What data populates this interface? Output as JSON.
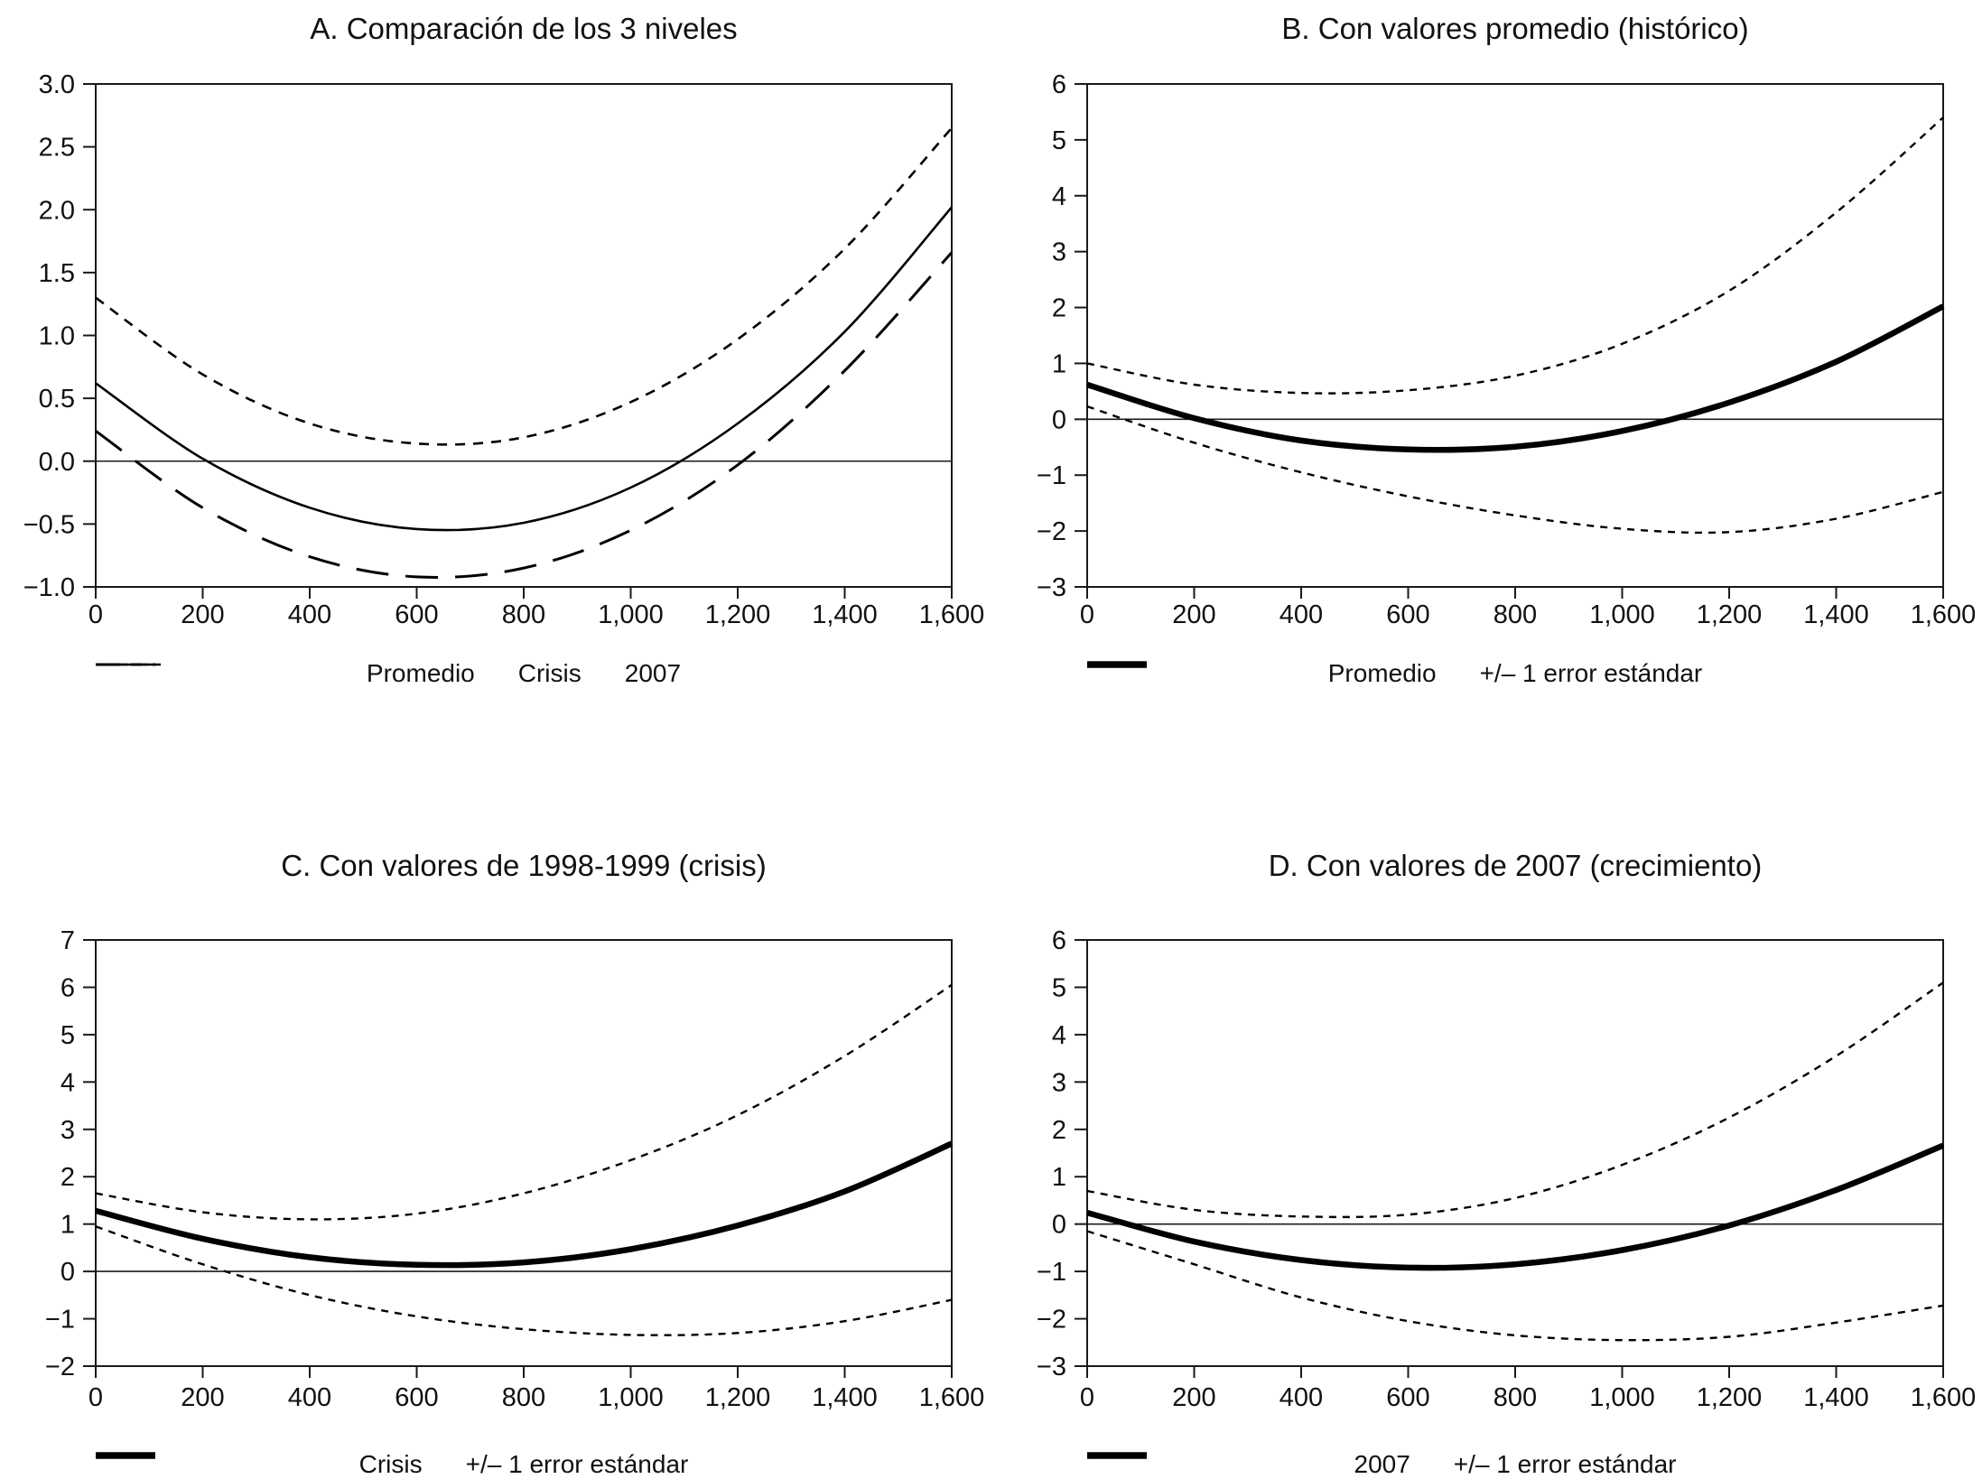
{
  "page": {
    "background": "#ffffff",
    "text_color": "#111111",
    "line_color": "#1a1a1a",
    "curve_color": "#000000"
  },
  "chart_data": [
    {
      "id": "A",
      "type": "line",
      "title": "A. Comparación de los 3 niveles",
      "xlim": [
        0,
        1600
      ],
      "ylim": [
        -1.0,
        3.0
      ],
      "x": [
        0,
        200,
        400,
        600,
        800,
        1000,
        1200,
        1400,
        1600
      ],
      "x_tick_labels": [
        "0",
        "200",
        "400",
        "600",
        "800",
        "1,000",
        "1,200",
        "1,400",
        "1,600"
      ],
      "y_ticks": [
        3.0,
        2.5,
        2.0,
        1.5,
        1.0,
        0.5,
        0.0,
        -0.5,
        -1.0
      ],
      "y_tick_labels": [
        "3.0",
        "2.5",
        "2.0",
        "1.5",
        "1.0",
        "0.5",
        "0.0",
        "−0.5",
        "−1.0"
      ],
      "grid": false,
      "zero_line": true,
      "legend_position": "bottom",
      "series": [
        {
          "name": "Promedio",
          "style": "solid",
          "values": [
            0.62,
            0.02,
            -0.37,
            -0.54,
            -0.49,
            -0.21,
            0.3,
            1.03,
            2.02
          ]
        },
        {
          "name": "Crisis",
          "style": "dash-short",
          "values": [
            1.3,
            0.69,
            0.3,
            0.14,
            0.19,
            0.47,
            0.97,
            1.69,
            2.65
          ]
        },
        {
          "name": "2007",
          "style": "dash-long",
          "values": [
            0.24,
            -0.37,
            -0.76,
            -0.92,
            -0.85,
            -0.55,
            -0.03,
            0.72,
            1.66
          ]
        }
      ],
      "legend": [
        {
          "label": "Promedio",
          "style": "solid"
        },
        {
          "label": "Crisis",
          "style": "dash-short"
        },
        {
          "label": "2007",
          "style": "dash-long"
        }
      ]
    },
    {
      "id": "B",
      "type": "line",
      "title": "B. Con valores promedio (histórico)",
      "xlim": [
        0,
        1600
      ],
      "ylim": [
        -3,
        6
      ],
      "x": [
        0,
        200,
        400,
        600,
        800,
        1000,
        1200,
        1400,
        1600
      ],
      "x_tick_labels": [
        "0",
        "200",
        "400",
        "600",
        "800",
        "1,000",
        "1,200",
        "1,400",
        "1,600"
      ],
      "y_ticks": [
        6,
        5,
        4,
        3,
        2,
        1,
        0,
        -1,
        -2,
        -3
      ],
      "y_tick_labels": [
        "6",
        "5",
        "4",
        "3",
        "2",
        "1",
        "0",
        "−1",
        "−2",
        "−3"
      ],
      "grid": false,
      "zero_line": true,
      "legend_position": "bottom",
      "series": [
        {
          "name": "Promedio",
          "style": "thick",
          "values": [
            0.62,
            0.02,
            -0.38,
            -0.54,
            -0.49,
            -0.21,
            0.3,
            1.03,
            2.02
          ]
        },
        {
          "name": "+1 error estándar",
          "style": "dash",
          "values": [
            1.0,
            0.62,
            0.47,
            0.52,
            0.78,
            1.35,
            2.3,
            3.7,
            5.4
          ]
        },
        {
          "name": "-1 error estándar",
          "style": "dash",
          "values": [
            0.23,
            -0.42,
            -0.95,
            -1.38,
            -1.72,
            -1.96,
            -2.02,
            -1.78,
            -1.3
          ]
        }
      ],
      "legend": [
        {
          "label": "Promedio",
          "style": "thick"
        },
        {
          "label": "+/– 1 error estándar",
          "style": "dash"
        }
      ]
    },
    {
      "id": "C",
      "type": "line",
      "title": "C. Con valores de 1998-1999 (crisis)",
      "xlim": [
        0,
        1600
      ],
      "ylim": [
        -2,
        7
      ],
      "x": [
        0,
        200,
        400,
        600,
        800,
        1000,
        1200,
        1400,
        1600
      ],
      "x_tick_labels": [
        "0",
        "200",
        "400",
        "600",
        "800",
        "1,000",
        "1,200",
        "1,400",
        "1,600"
      ],
      "y_ticks": [
        7,
        6,
        5,
        4,
        3,
        2,
        1,
        0,
        -1,
        -2
      ],
      "y_tick_labels": [
        "7",
        "6",
        "5",
        "4",
        "3",
        "2",
        "1",
        "0",
        "−1",
        "−2"
      ],
      "grid": false,
      "zero_line": true,
      "legend_position": "bottom",
      "series": [
        {
          "name": "Crisis",
          "style": "thick",
          "values": [
            1.28,
            0.69,
            0.3,
            0.14,
            0.19,
            0.47,
            0.97,
            1.69,
            2.7
          ]
        },
        {
          "name": "+1 error estándar",
          "style": "dash",
          "values": [
            1.65,
            1.25,
            1.1,
            1.22,
            1.65,
            2.35,
            3.3,
            4.55,
            6.05
          ]
        },
        {
          "name": "-1 error estándar",
          "style": "dash",
          "values": [
            0.95,
            0.15,
            -0.5,
            -0.95,
            -1.22,
            -1.34,
            -1.3,
            -1.05,
            -0.6
          ]
        }
      ],
      "legend": [
        {
          "label": "Crisis",
          "style": "thick"
        },
        {
          "label": "+/– 1 error estándar",
          "style": "dash"
        }
      ]
    },
    {
      "id": "D",
      "type": "line",
      "title": "D. Con valores de 2007 (crecimiento)",
      "xlim": [
        0,
        1600
      ],
      "ylim": [
        -3,
        6
      ],
      "x": [
        0,
        200,
        400,
        600,
        800,
        1000,
        1200,
        1400,
        1600
      ],
      "x_tick_labels": [
        "0",
        "200",
        "400",
        "600",
        "800",
        "1,000",
        "1,200",
        "1,400",
        "1,600"
      ],
      "y_ticks": [
        6,
        5,
        4,
        3,
        2,
        1,
        0,
        -1,
        -2,
        -3
      ],
      "y_tick_labels": [
        "6",
        "5",
        "4",
        "3",
        "2",
        "1",
        "0",
        "−1",
        "−2",
        "−3"
      ],
      "grid": false,
      "zero_line": true,
      "legend_position": "bottom",
      "series": [
        {
          "name": "2007",
          "style": "thick",
          "values": [
            0.24,
            -0.37,
            -0.76,
            -0.92,
            -0.85,
            -0.55,
            -0.03,
            0.72,
            1.66
          ]
        },
        {
          "name": "+1 error estándar",
          "style": "dash",
          "values": [
            0.7,
            0.3,
            0.16,
            0.2,
            0.55,
            1.25,
            2.25,
            3.55,
            5.1
          ]
        },
        {
          "name": "-1 error estándar",
          "style": "dash",
          "values": [
            -0.15,
            -0.85,
            -1.55,
            -2.05,
            -2.35,
            -2.45,
            -2.38,
            -2.08,
            -1.72
          ]
        }
      ],
      "legend": [
        {
          "label": "2007",
          "style": "thick"
        },
        {
          "label": "+/– 1 error estándar",
          "style": "dash"
        }
      ]
    }
  ]
}
